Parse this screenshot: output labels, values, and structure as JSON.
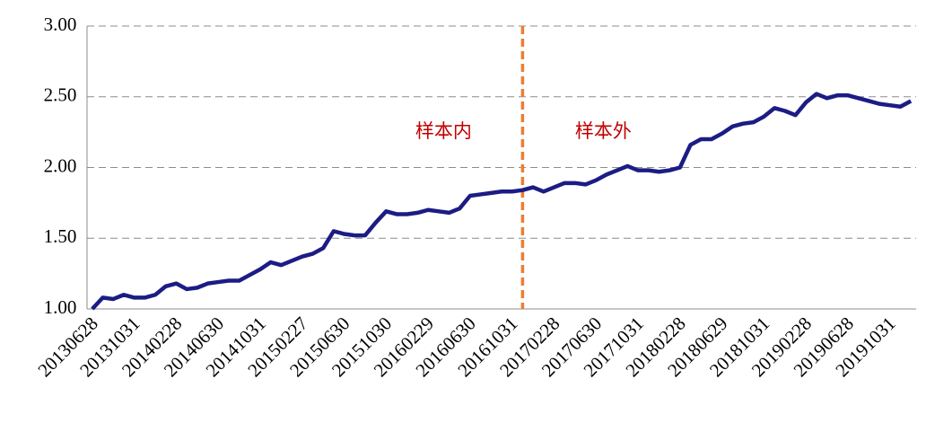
{
  "chart_data": {
    "type": "line",
    "categories": [
      "20130628",
      null,
      null,
      null,
      "20131031",
      null,
      null,
      null,
      "20140228",
      null,
      null,
      null,
      "20140630",
      null,
      null,
      null,
      "20141031",
      null,
      null,
      null,
      "20150227",
      null,
      null,
      null,
      "20150630",
      null,
      null,
      null,
      "20151030",
      null,
      null,
      null,
      "20160229",
      null,
      null,
      null,
      "20160630",
      null,
      null,
      null,
      "20161031",
      null,
      null,
      null,
      "20170228",
      null,
      null,
      null,
      "20170630",
      null,
      null,
      null,
      "20171031",
      null,
      null,
      null,
      "20180228",
      null,
      null,
      null,
      "20180629",
      null,
      null,
      null,
      "20181031",
      null,
      null,
      null,
      "20190228",
      null,
      null,
      null,
      "20190628",
      null,
      null,
      null,
      "20191031",
      null,
      null
    ],
    "series": [
      {
        "color": "#1c1c85",
        "values": [
          1.0,
          1.08,
          1.07,
          1.1,
          1.08,
          1.08,
          1.1,
          1.16,
          1.18,
          1.14,
          1.15,
          1.18,
          1.19,
          1.2,
          1.2,
          1.24,
          1.28,
          1.33,
          1.31,
          1.34,
          1.37,
          1.39,
          1.43,
          1.55,
          1.53,
          1.52,
          1.52,
          1.61,
          1.69,
          1.67,
          1.67,
          1.68,
          1.7,
          1.69,
          1.68,
          1.71,
          1.8,
          1.81,
          1.82,
          1.83,
          1.83,
          1.84,
          1.86,
          1.83,
          1.86,
          1.89,
          1.89,
          1.88,
          1.91,
          1.95,
          1.98,
          2.01,
          1.98,
          1.98,
          1.97,
          1.98,
          2.0,
          2.16,
          2.2,
          2.2,
          2.24,
          2.29,
          2.31,
          2.32,
          2.36,
          2.42,
          2.4,
          2.37,
          2.46,
          2.52,
          2.49,
          2.51,
          2.51,
          2.49,
          2.47,
          2.45,
          2.44,
          2.43,
          2.47
        ]
      }
    ],
    "ylim": [
      1,
      3
    ],
    "yticks": [
      {
        "value": 1,
        "label": "1.00"
      },
      {
        "value": 1.5,
        "label": "1.50"
      },
      {
        "value": 2,
        "label": "2.00"
      },
      {
        "value": 2.5,
        "label": "2.50"
      },
      {
        "value": 3,
        "label": "3.00"
      }
    ],
    "grid": true,
    "split_index": 41,
    "split_color": "#ed7d31",
    "annotations": [
      {
        "text": "样本内",
        "color": "#c00000"
      },
      {
        "text": "样本外",
        "color": "#c00000"
      }
    ]
  }
}
